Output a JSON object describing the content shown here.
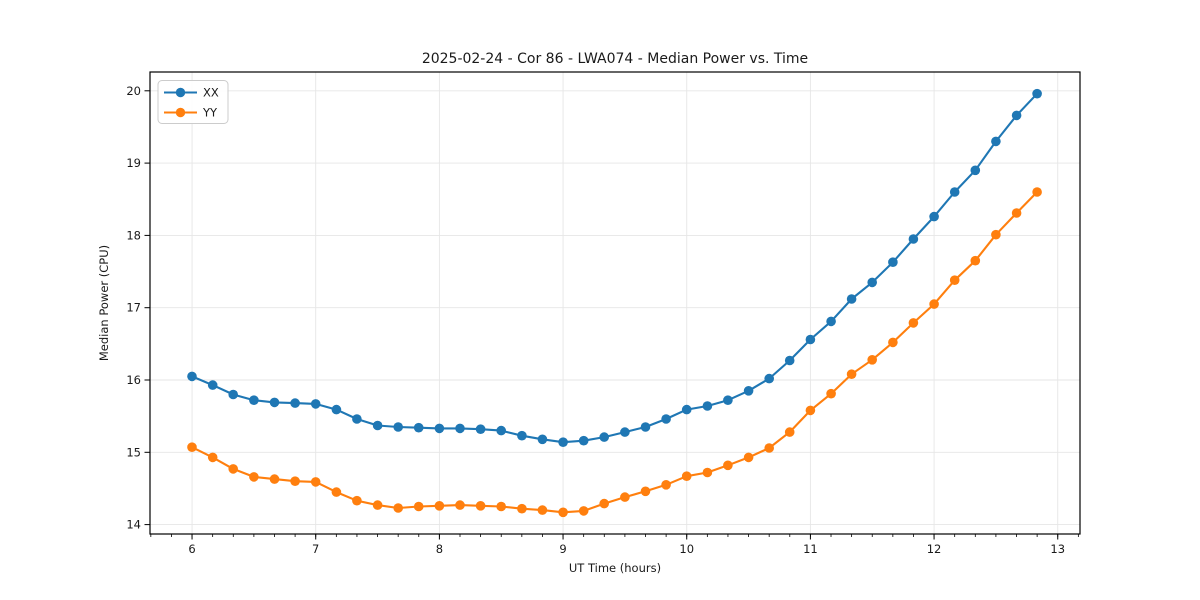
{
  "figure": {
    "background": "#ffffff",
    "frame_color": "#000000",
    "grid_color": "#e6e6e6",
    "text_color": "#1a1a1a"
  },
  "chart_data": {
    "type": "line",
    "title": "2025-02-24 - Cor 86 - LWA074 - Median Power vs. Time",
    "xlabel": "UT Time (hours)",
    "ylabel": "Median Power (CPU)",
    "xlim": [
      5.66,
      13.18
    ],
    "ylim": [
      13.87,
      20.26
    ],
    "x_ticks": [
      6,
      7,
      8,
      9,
      10,
      11,
      12,
      13
    ],
    "y_ticks": [
      14,
      15,
      16,
      17,
      18,
      19,
      20
    ],
    "x_minor_step": 0.1666667,
    "grid": true,
    "legend_position": "upper-left",
    "marker": "circle",
    "x": [
      6.0,
      6.167,
      6.333,
      6.5,
      6.667,
      6.833,
      7.0,
      7.167,
      7.333,
      7.5,
      7.667,
      7.833,
      8.0,
      8.167,
      8.333,
      8.5,
      8.667,
      8.833,
      9.0,
      9.167,
      9.333,
      9.5,
      9.667,
      9.833,
      10.0,
      10.167,
      10.333,
      10.5,
      10.667,
      10.833,
      11.0,
      11.167,
      11.333,
      11.5,
      11.667,
      11.833,
      12.0,
      12.167,
      12.333,
      12.5,
      12.667,
      12.833
    ],
    "series": [
      {
        "name": "XX",
        "color": "#1f77b4",
        "values": [
          16.05,
          15.93,
          15.8,
          15.72,
          15.69,
          15.68,
          15.67,
          15.59,
          15.46,
          15.37,
          15.35,
          15.34,
          15.33,
          15.33,
          15.32,
          15.3,
          15.23,
          15.18,
          15.14,
          15.16,
          15.21,
          15.28,
          15.35,
          15.46,
          15.59,
          15.64,
          15.72,
          15.85,
          16.02,
          16.27,
          16.56,
          16.81,
          17.12,
          17.35,
          17.63,
          17.95,
          18.26,
          18.6,
          18.9,
          19.3,
          19.66,
          19.96
        ]
      },
      {
        "name": "YY",
        "color": "#ff7f0e",
        "values": [
          15.07,
          14.93,
          14.77,
          14.66,
          14.63,
          14.6,
          14.59,
          14.45,
          14.33,
          14.27,
          14.23,
          14.25,
          14.26,
          14.27,
          14.26,
          14.25,
          14.22,
          14.2,
          14.17,
          14.19,
          14.29,
          14.38,
          14.46,
          14.55,
          14.67,
          14.72,
          14.82,
          14.93,
          15.06,
          15.28,
          15.58,
          15.81,
          16.08,
          16.28,
          16.52,
          16.79,
          17.05,
          17.38,
          17.65,
          18.01,
          18.31,
          18.6
        ]
      }
    ]
  }
}
